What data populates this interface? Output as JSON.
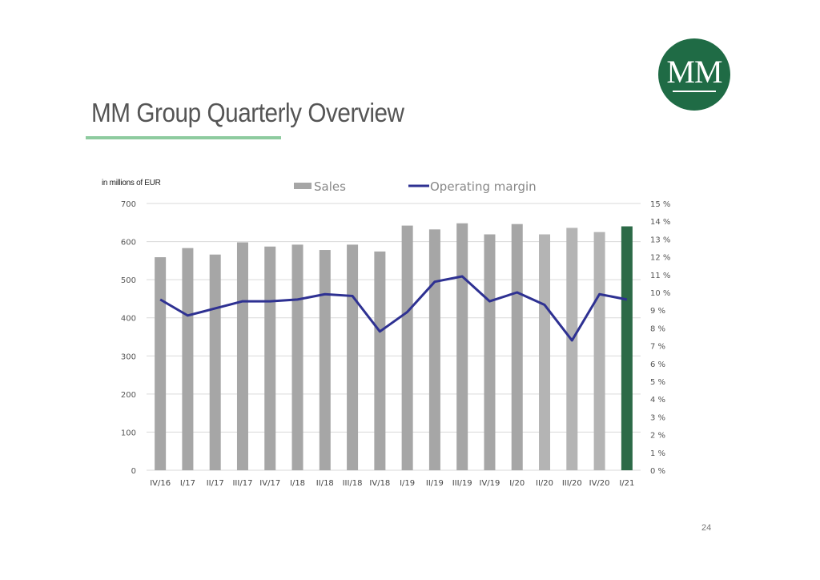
{
  "logo_text": "MM",
  "title": "MM Group Quarterly Overview",
  "page_number": "24",
  "colors": {
    "bar": "#a6a6a6",
    "bar_light": "#b4b4b4",
    "bar_highlight": "#2c6a47",
    "line": "#2e3192",
    "title_rule": "#8ecb9f",
    "logo": "#1f6b45"
  },
  "chart_data": {
    "type": "bar+line",
    "unit_label": "in millions of EUR",
    "categories": [
      "IV/16",
      "I/17",
      "II/17",
      "III/17",
      "IV/17",
      "I/18",
      "II/18",
      "III/18",
      "IV/18",
      "I/19",
      "II/19",
      "III/19",
      "IV/19",
      "I/20",
      "II/20",
      "III/20",
      "IV/20",
      "I/21"
    ],
    "series": [
      {
        "name": "Sales",
        "type": "bar",
        "axis": "left",
        "values": [
          559,
          583,
          566,
          598,
          587,
          592,
          578,
          592,
          574,
          642,
          632,
          648,
          619,
          646,
          619,
          636,
          625,
          640
        ]
      },
      {
        "name": "Operating margin",
        "type": "line",
        "axis": "right",
        "values": [
          9.6,
          8.7,
          9.1,
          9.5,
          9.5,
          9.6,
          9.9,
          9.8,
          7.8,
          8.9,
          10.6,
          10.9,
          9.5,
          10.0,
          9.3,
          7.3,
          9.9,
          9.6
        ]
      }
    ],
    "left_axis": {
      "ylim": [
        0,
        700
      ],
      "ticks": [
        "0",
        "100",
        "200",
        "300",
        "400",
        "500",
        "600",
        "700"
      ]
    },
    "right_axis": {
      "ylim": [
        0,
        15
      ],
      "ticks": [
        "0 %",
        "1 %",
        "2 %",
        "3 %",
        "4 %",
        "5 %",
        "6 %",
        "7 %",
        "8 %",
        "9 %",
        "10 %",
        "11 %",
        "12 %",
        "13 %",
        "14 %",
        "15 %"
      ]
    },
    "legend": "top-center",
    "grid": true
  }
}
